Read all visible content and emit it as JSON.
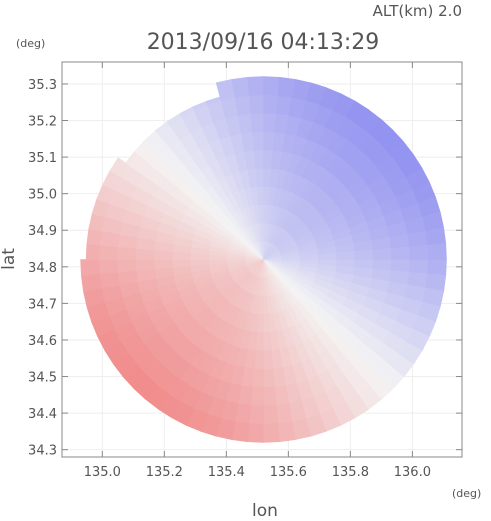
{
  "chart_data": {
    "type": "heatmap",
    "title": "2013/09/16 04:13:29",
    "altitude_label": "ALT(km) 2.0",
    "xlabel": "lon",
    "ylabel": "lat",
    "x_unit": "(deg)",
    "y_unit": "(deg)",
    "xlim": [
      134.87,
      136.16
    ],
    "ylim": [
      34.28,
      35.36
    ],
    "x_ticks": [
      135.0,
      135.2,
      135.4,
      135.6,
      135.8,
      136.0
    ],
    "x_tick_labels": [
      "135.0",
      "135.2",
      "135.4",
      "135.6",
      "135.8",
      "136.0"
    ],
    "y_ticks": [
      34.3,
      34.4,
      34.5,
      34.6,
      34.7,
      34.8,
      34.9,
      35.0,
      35.1,
      35.2,
      35.3
    ],
    "y_tick_labels": [
      "34.3",
      "34.4",
      "34.5",
      "34.6",
      "34.7",
      "34.8",
      "34.9",
      "35.0",
      "35.1",
      "35.2",
      "35.3"
    ],
    "radar_center": {
      "lon": 135.52,
      "lat": 34.82
    },
    "radar_range_deg": 0.59,
    "colors": {
      "positive": "#f07a7a",
      "negative": "#7a7af0",
      "zero": "#f4f4f4",
      "axis": "#888888",
      "grid": "#eeeeee",
      "text": "#555555"
    }
  }
}
